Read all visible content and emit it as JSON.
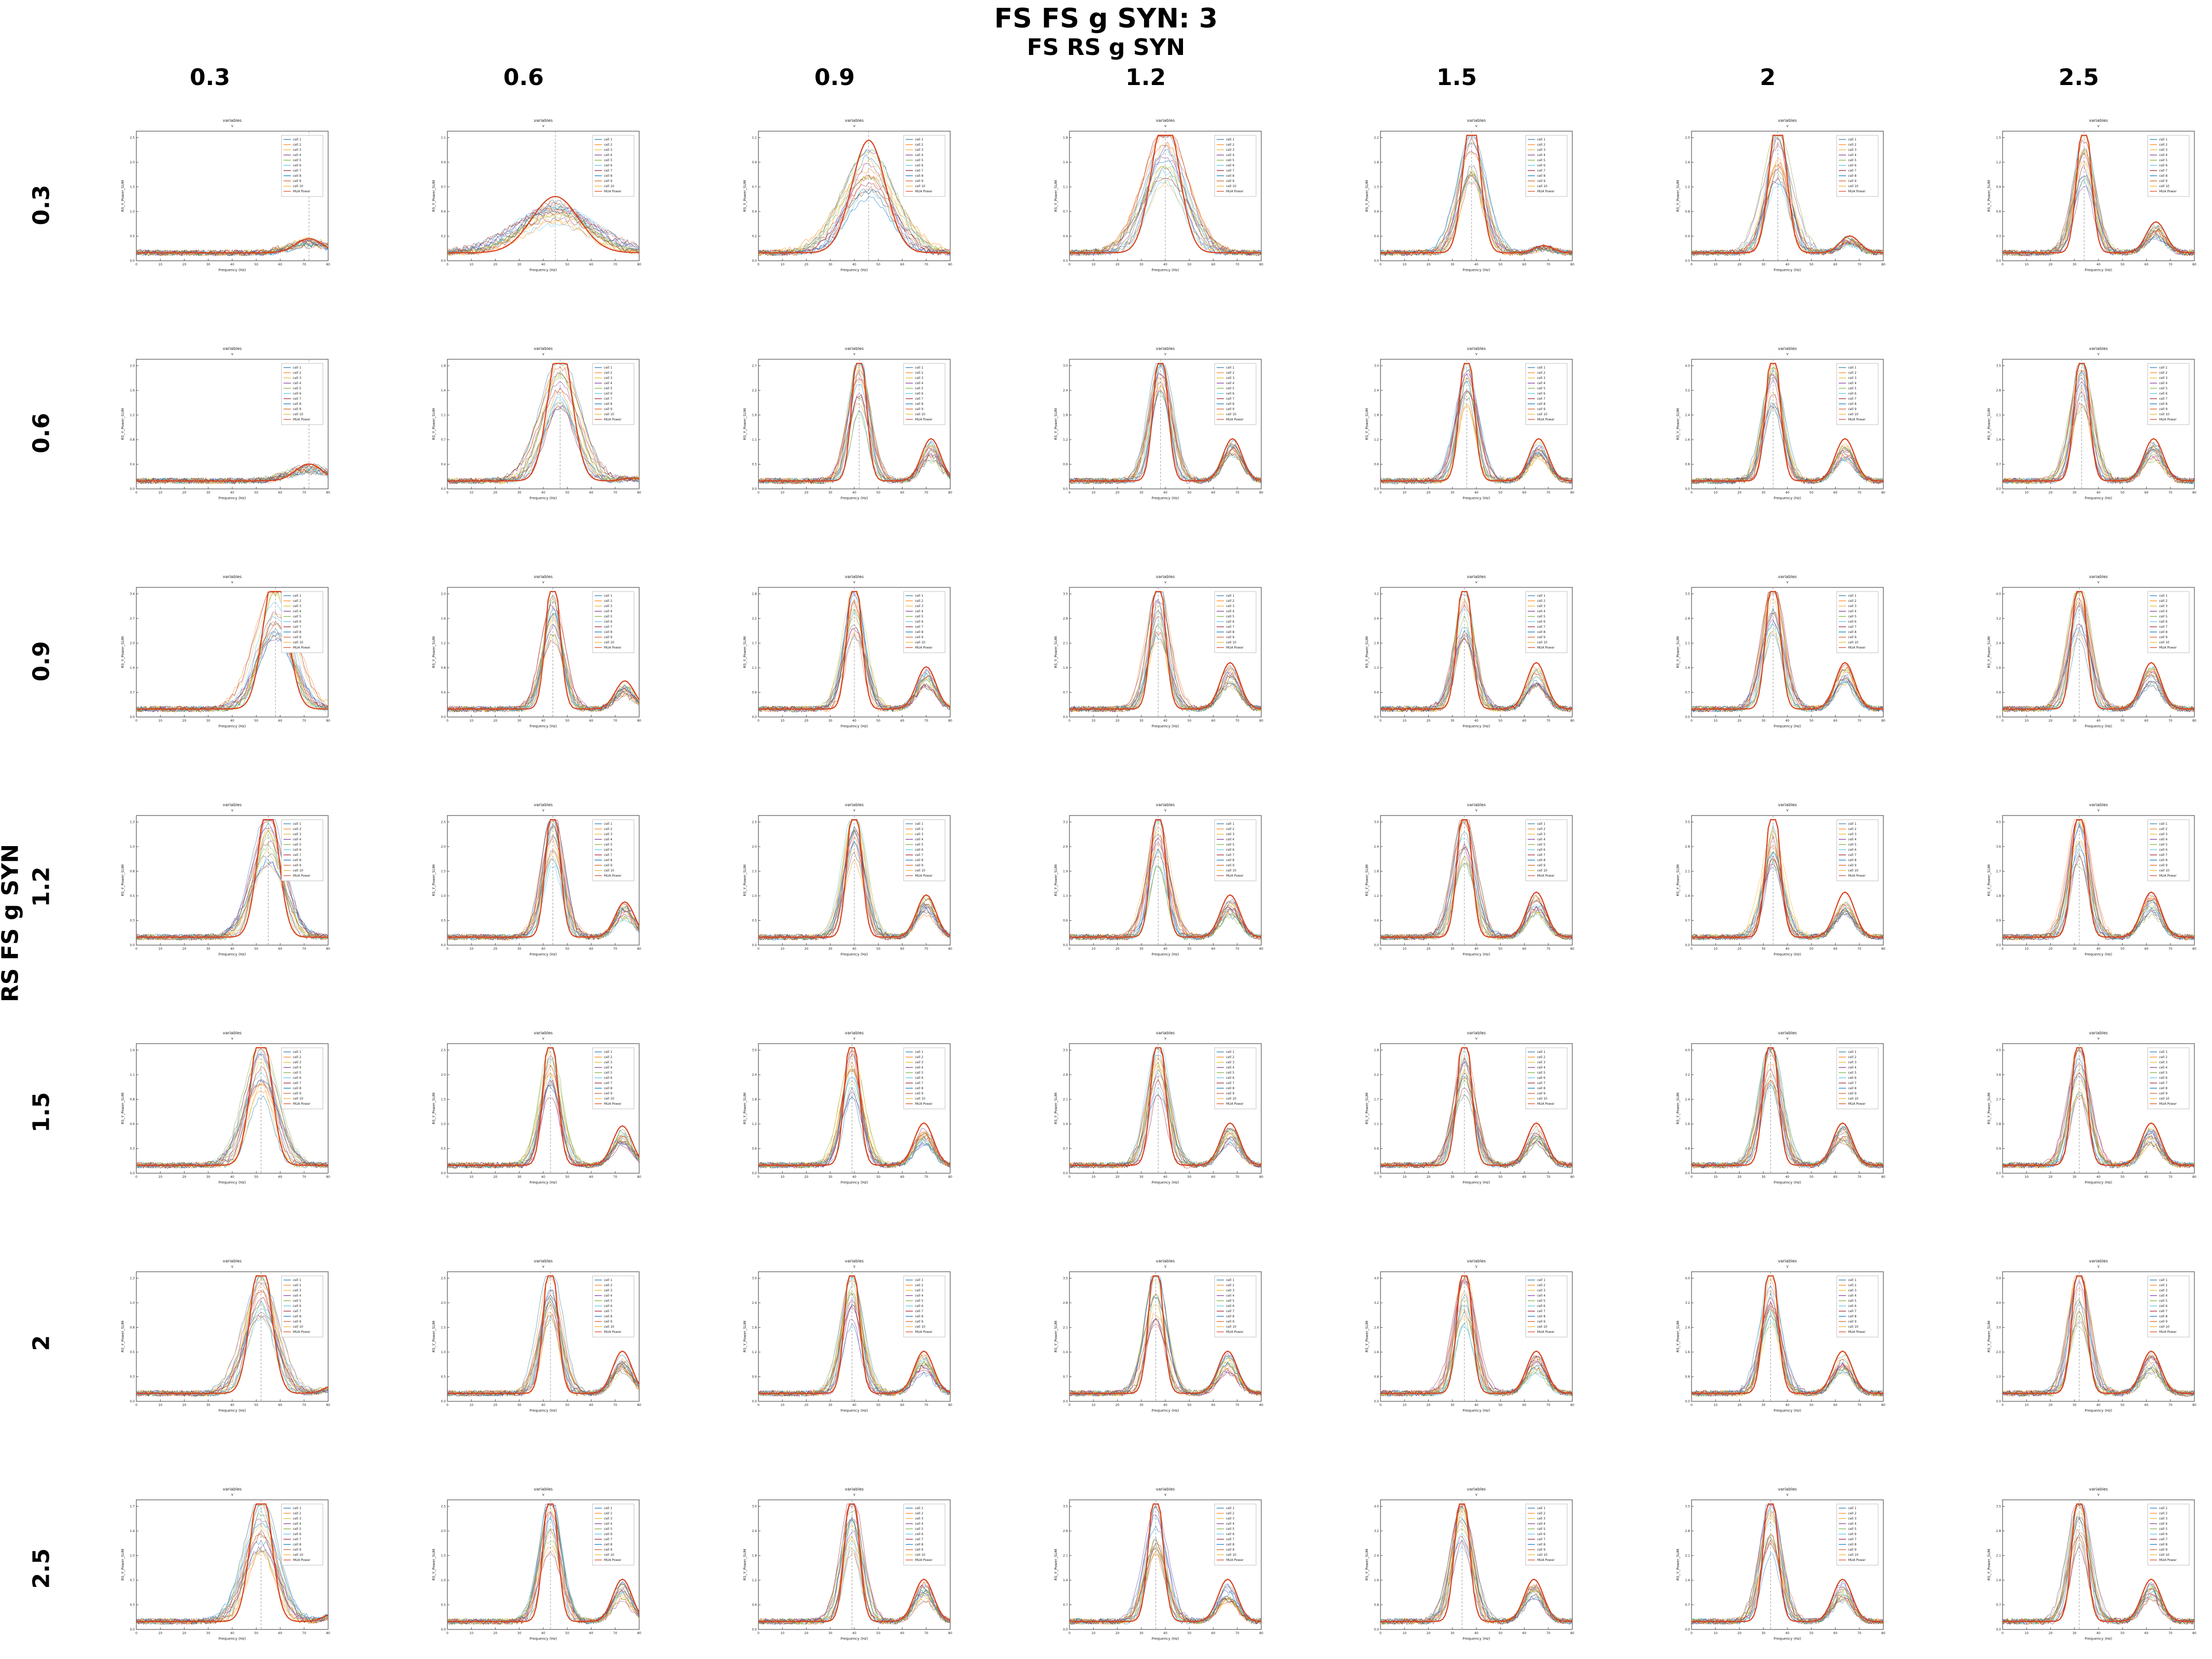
{
  "title": "FS FS g SYN: 3",
  "x_group_title": "FS RS g SYN",
  "y_group_title": "RS FS g SYN",
  "columns": [
    "0.3",
    "0.6",
    "0.9",
    "1.2",
    "1.5",
    "2",
    "2.5"
  ],
  "rows": [
    "0.3",
    "0.6",
    "0.9",
    "1.2",
    "1.5",
    "2",
    "2.5"
  ],
  "colors": {
    "mua": "#d9411e",
    "cells": [
      "#1f77b4",
      "#ff7f0e",
      "#e6b422",
      "#7e2f8e",
      "#77ac30",
      "#4dbeee",
      "#a2142f",
      "#0072bd",
      "#d95319",
      "#edb120",
      "#555555"
    ],
    "vline": "#888888"
  },
  "chart_data": {
    "type": "line",
    "layout": "7x7 small multiples",
    "x_range": [
      0,
      80
    ],
    "xlabel": "Frequency (Hz)",
    "ylabel": "RS_Y_Power_SUM",
    "panel_title": "variables",
    "legend": {
      "placement": "top-right",
      "entries": [
        "cell 1",
        "cell 2",
        "cell 3",
        "cell 4",
        "cell 5",
        "cell 6",
        "cell 7",
        "cell 8",
        "cell 9",
        "cell 10",
        "MUA Power"
      ]
    },
    "series": [
      {
        "name": "cell 1..10",
        "kind": "individual cell power spectra"
      },
      {
        "name": "MUA Power",
        "kind": "multi-unit power spectrum"
      }
    ],
    "panels": [
      [
        {
          "peak": 72,
          "height": 0.1,
          "width": 8,
          "second": 0,
          "ymax": 2.5
        },
        {
          "peak": 45,
          "height": 0.4,
          "width": 14,
          "second": 0,
          "ymax": 1.1
        },
        {
          "peak": 46,
          "height": 0.8,
          "width": 10,
          "second": 0,
          "ymax": 1.1
        },
        {
          "peak": 40,
          "height": 1.0,
          "width": 8,
          "second": 0,
          "ymax": 1.8
        },
        {
          "peak": 38,
          "height": 1.0,
          "width": 5,
          "second": 0.05,
          "ymax": 2.2
        },
        {
          "peak": 36,
          "height": 1.0,
          "width": 5,
          "second": 0.12,
          "ymax": 2.0
        },
        {
          "peak": 34,
          "height": 1.0,
          "width": 4,
          "second": 0.22,
          "ymax": 1.5
        }
      ],
      [
        {
          "peak": 72,
          "height": 0.12,
          "width": 8,
          "second": 0,
          "ymax": 2.0
        },
        {
          "peak": 47,
          "height": 1.0,
          "width": 7,
          "second": 0.02,
          "ymax": 1.8
        },
        {
          "peak": 42,
          "height": 1.0,
          "width": 4,
          "second": 0.3,
          "ymax": 2.7
        },
        {
          "peak": 38,
          "height": 1.0,
          "width": 4,
          "second": 0.3,
          "ymax": 3.0
        },
        {
          "peak": 36,
          "height": 1.0,
          "width": 4,
          "second": 0.3,
          "ymax": 3.0
        },
        {
          "peak": 34,
          "height": 1.0,
          "width": 4,
          "second": 0.3,
          "ymax": 4.0
        },
        {
          "peak": 33,
          "height": 1.0,
          "width": 4,
          "second": 0.3,
          "ymax": 3.5
        }
      ],
      [
        {
          "peak": 58,
          "height": 1.0,
          "width": 7,
          "second": 0,
          "ymax": 3.4
        },
        {
          "peak": 44,
          "height": 1.0,
          "width": 4,
          "second": 0.2,
          "ymax": 2.0
        },
        {
          "peak": 40,
          "height": 1.0,
          "width": 4,
          "second": 0.3,
          "ymax": 2.8
        },
        {
          "peak": 37,
          "height": 1.0,
          "width": 4,
          "second": 0.33,
          "ymax": 3.5
        },
        {
          "peak": 35,
          "height": 1.0,
          "width": 4,
          "second": 0.33,
          "ymax": 3.2
        },
        {
          "peak": 34,
          "height": 1.0,
          "width": 4,
          "second": 0.33,
          "ymax": 3.5
        },
        {
          "peak": 32,
          "height": 1.0,
          "width": 4,
          "second": 0.33,
          "ymax": 4.0
        }
      ],
      [
        {
          "peak": 55,
          "height": 1.0,
          "width": 6,
          "second": 0,
          "ymax": 1.3
        },
        {
          "peak": 44,
          "height": 1.0,
          "width": 4,
          "second": 0.25,
          "ymax": 2.5
        },
        {
          "peak": 40,
          "height": 1.0,
          "width": 4,
          "second": 0.3,
          "ymax": 2.5
        },
        {
          "peak": 37,
          "height": 1.0,
          "width": 4,
          "second": 0.3,
          "ymax": 3.2
        },
        {
          "peak": 35,
          "height": 1.0,
          "width": 4,
          "second": 0.32,
          "ymax": 3.0
        },
        {
          "peak": 34,
          "height": 1.0,
          "width": 4,
          "second": 0.32,
          "ymax": 3.5
        },
        {
          "peak": 32,
          "height": 1.0,
          "width": 4,
          "second": 0.32,
          "ymax": 4.5
        }
      ],
      [
        {
          "peak": 52,
          "height": 1.0,
          "width": 6,
          "second": 0,
          "ymax": 1.4
        },
        {
          "peak": 43,
          "height": 1.0,
          "width": 4,
          "second": 0.28,
          "ymax": 2.5
        },
        {
          "peak": 39,
          "height": 1.0,
          "width": 4,
          "second": 0.3,
          "ymax": 3.0
        },
        {
          "peak": 37,
          "height": 1.0,
          "width": 4,
          "second": 0.3,
          "ymax": 3.5
        },
        {
          "peak": 35,
          "height": 1.0,
          "width": 4,
          "second": 0.3,
          "ymax": 2.8
        },
        {
          "peak": 33,
          "height": 1.0,
          "width": 4,
          "second": 0.3,
          "ymax": 4.0
        },
        {
          "peak": 32,
          "height": 1.0,
          "width": 4,
          "second": 0.3,
          "ymax": 4.5
        }
      ],
      [
        {
          "peak": 52,
          "height": 1.0,
          "width": 6,
          "second": 0.05,
          "ymax": 1.3
        },
        {
          "peak": 43,
          "height": 1.0,
          "width": 4,
          "second": 0.3,
          "ymax": 2.5
        },
        {
          "peak": 39,
          "height": 1.0,
          "width": 4,
          "second": 0.3,
          "ymax": 3.0
        },
        {
          "peak": 36,
          "height": 1.0,
          "width": 4,
          "second": 0.3,
          "ymax": 3.5
        },
        {
          "peak": 35,
          "height": 1.0,
          "width": 4,
          "second": 0.3,
          "ymax": 4.0
        },
        {
          "peak": 33,
          "height": 1.0,
          "width": 4,
          "second": 0.3,
          "ymax": 4.0
        },
        {
          "peak": 32,
          "height": 1.0,
          "width": 4,
          "second": 0.3,
          "ymax": 5.0
        }
      ],
      [
        {
          "peak": 52,
          "height": 1.0,
          "width": 6,
          "second": 0.05,
          "ymax": 1.7
        },
        {
          "peak": 43,
          "height": 1.0,
          "width": 4,
          "second": 0.3,
          "ymax": 2.5
        },
        {
          "peak": 39,
          "height": 1.0,
          "width": 4,
          "second": 0.3,
          "ymax": 3.0
        },
        {
          "peak": 36,
          "height": 1.0,
          "width": 4,
          "second": 0.3,
          "ymax": 3.5
        },
        {
          "peak": 34,
          "height": 1.0,
          "width": 4,
          "second": 0.3,
          "ymax": 4.0
        },
        {
          "peak": 33,
          "height": 1.0,
          "width": 4,
          "second": 0.3,
          "ymax": 3.5
        },
        {
          "peak": 32,
          "height": 1.0,
          "width": 4,
          "second": 0.3,
          "ymax": 3.5
        }
      ]
    ]
  }
}
